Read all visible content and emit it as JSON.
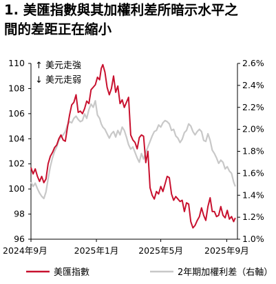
{
  "title_line1": "1. 美匯指數與其加權利差所暗示水平之",
  "title_line2": "間的差距正在縮小",
  "chart_data": {
    "type": "line",
    "left_axis": {
      "ticks": [
        96,
        98,
        100,
        102,
        104,
        106,
        108,
        110
      ],
      "range": [
        96,
        110
      ]
    },
    "right_axis": {
      "ticks": [
        "1.0%",
        "1.2%",
        "1.4%",
        "1.6%",
        "1.8%",
        "2.0%",
        "2.2%",
        "2.4%",
        "2.6%"
      ],
      "range": [
        1.0,
        2.6
      ],
      "unit": "%"
    },
    "x_ticks": [
      {
        "label": "2024年9月",
        "date": "2024-09-01"
      },
      {
        "label": "2025年1月",
        "date": "2025-01-01"
      },
      {
        "label": "2025年5月",
        "date": "2025-05-01"
      },
      {
        "label": "2025年9月",
        "date": "2025-09-01"
      }
    ],
    "annotation_up": "↑ 美元走強",
    "annotation_down": "↓ 美元走弱",
    "grid": false,
    "legend_position": "bottom",
    "series": [
      {
        "name": "美匯指數",
        "axis": "left",
        "color": "#c8102e",
        "points": [
          [
            "2024-09-01",
            101.7
          ],
          [
            "2024-09-05",
            101.2
          ],
          [
            "2024-09-09",
            101.6
          ],
          [
            "2024-09-13",
            101.0
          ],
          [
            "2024-09-17",
            100.6
          ],
          [
            "2024-09-21",
            101.0
          ],
          [
            "2024-09-25",
            100.5
          ],
          [
            "2024-09-29",
            100.8
          ],
          [
            "2024-10-03",
            102.0
          ],
          [
            "2024-10-07",
            102.6
          ],
          [
            "2024-10-11",
            102.9
          ],
          [
            "2024-10-15",
            103.3
          ],
          [
            "2024-10-19",
            103.5
          ],
          [
            "2024-10-23",
            104.0
          ],
          [
            "2024-10-27",
            104.3
          ],
          [
            "2024-10-31",
            103.9
          ],
          [
            "2024-11-04",
            103.8
          ],
          [
            "2024-11-08",
            104.9
          ],
          [
            "2024-11-12",
            105.9
          ],
          [
            "2024-11-16",
            106.7
          ],
          [
            "2024-11-20",
            106.9
          ],
          [
            "2024-11-24",
            107.5
          ],
          [
            "2024-11-28",
            106.1
          ],
          [
            "2024-12-02",
            106.2
          ],
          [
            "2024-12-06",
            106.0
          ],
          [
            "2024-12-10",
            106.4
          ],
          [
            "2024-12-14",
            107.0
          ],
          [
            "2024-12-18",
            106.8
          ],
          [
            "2024-12-22",
            107.9
          ],
          [
            "2024-12-26",
            108.1
          ],
          [
            "2024-12-30",
            108.3
          ],
          [
            "2025-01-03",
            108.9
          ],
          [
            "2025-01-07",
            108.7
          ],
          [
            "2025-01-10",
            109.6
          ],
          [
            "2025-01-13",
            109.9
          ],
          [
            "2025-01-17",
            109.3
          ],
          [
            "2025-01-21",
            108.1
          ],
          [
            "2025-01-25",
            107.5
          ],
          [
            "2025-01-29",
            108.0
          ],
          [
            "2025-02-02",
            109.0
          ],
          [
            "2025-02-06",
            107.7
          ],
          [
            "2025-02-10",
            108.2
          ],
          [
            "2025-02-14",
            106.8
          ],
          [
            "2025-02-18",
            107.1
          ],
          [
            "2025-02-22",
            106.5
          ],
          [
            "2025-02-26",
            106.9
          ],
          [
            "2025-03-02",
            107.3
          ],
          [
            "2025-03-06",
            104.3
          ],
          [
            "2025-03-10",
            103.9
          ],
          [
            "2025-03-14",
            103.7
          ],
          [
            "2025-03-18",
            103.2
          ],
          [
            "2025-03-22",
            104.1
          ],
          [
            "2025-03-26",
            104.3
          ],
          [
            "2025-03-30",
            104.2
          ],
          [
            "2025-04-03",
            102.1
          ],
          [
            "2025-04-07",
            103.0
          ],
          [
            "2025-04-11",
            100.1
          ],
          [
            "2025-04-15",
            99.5
          ],
          [
            "2025-04-19",
            99.2
          ],
          [
            "2025-04-23",
            99.8
          ],
          [
            "2025-04-27",
            99.6
          ],
          [
            "2025-05-01",
            100.2
          ],
          [
            "2025-05-05",
            99.8
          ],
          [
            "2025-05-09",
            100.4
          ],
          [
            "2025-05-13",
            101.0
          ],
          [
            "2025-05-17",
            100.9
          ],
          [
            "2025-05-21",
            99.6
          ],
          [
            "2025-05-25",
            99.1
          ],
          [
            "2025-05-29",
            99.4
          ],
          [
            "2025-06-02",
            99.2
          ],
          [
            "2025-06-06",
            99.0
          ],
          [
            "2025-06-10",
            99.1
          ],
          [
            "2025-06-14",
            98.2
          ],
          [
            "2025-06-18",
            98.9
          ],
          [
            "2025-06-22",
            98.8
          ],
          [
            "2025-06-26",
            97.4
          ],
          [
            "2025-06-30",
            96.9
          ],
          [
            "2025-07-04",
            97.1
          ],
          [
            "2025-07-08",
            97.5
          ],
          [
            "2025-07-12",
            97.8
          ],
          [
            "2025-07-16",
            98.5
          ],
          [
            "2025-07-20",
            97.9
          ],
          [
            "2025-07-24",
            97.5
          ],
          [
            "2025-07-28",
            98.6
          ],
          [
            "2025-08-01",
            99.3
          ],
          [
            "2025-08-05",
            98.2
          ],
          [
            "2025-08-09",
            98.2
          ],
          [
            "2025-08-13",
            97.8
          ],
          [
            "2025-08-17",
            97.9
          ],
          [
            "2025-08-21",
            98.6
          ],
          [
            "2025-08-25",
            97.9
          ],
          [
            "2025-08-29",
            97.7
          ],
          [
            "2025-09-02",
            98.3
          ],
          [
            "2025-09-06",
            97.6
          ],
          [
            "2025-09-10",
            97.8
          ],
          [
            "2025-09-14",
            97.4
          ],
          [
            "2025-09-17",
            97.7
          ]
        ]
      },
      {
        "name": "2年期加權利差（右軸）",
        "axis": "right",
        "color": "#c8c8c8",
        "points": [
          [
            "2024-09-01",
            1.52
          ],
          [
            "2024-09-05",
            1.48
          ],
          [
            "2024-09-09",
            1.51
          ],
          [
            "2024-09-13",
            1.46
          ],
          [
            "2024-09-17",
            1.42
          ],
          [
            "2024-09-21",
            1.39
          ],
          [
            "2024-09-25",
            1.37
          ],
          [
            "2024-09-29",
            1.43
          ],
          [
            "2024-10-03",
            1.55
          ],
          [
            "2024-10-07",
            1.66
          ],
          [
            "2024-10-11",
            1.74
          ],
          [
            "2024-10-15",
            1.8
          ],
          [
            "2024-10-19",
            1.84
          ],
          [
            "2024-10-23",
            1.9
          ],
          [
            "2024-10-27",
            1.93
          ],
          [
            "2024-10-31",
            1.95
          ],
          [
            "2024-11-04",
            1.98
          ],
          [
            "2024-11-08",
            2.04
          ],
          [
            "2024-11-12",
            2.07
          ],
          [
            "2024-11-16",
            2.06
          ],
          [
            "2024-11-20",
            2.1
          ],
          [
            "2024-11-24",
            2.12
          ],
          [
            "2024-11-28",
            2.09
          ],
          [
            "2024-12-02",
            2.07
          ],
          [
            "2024-12-06",
            2.08
          ],
          [
            "2024-12-10",
            2.14
          ],
          [
            "2024-12-14",
            2.1
          ],
          [
            "2024-12-18",
            2.18
          ],
          [
            "2024-12-22",
            2.23
          ],
          [
            "2024-12-26",
            2.2
          ],
          [
            "2024-12-30",
            2.26
          ],
          [
            "2025-01-03",
            2.13
          ],
          [
            "2025-01-07",
            2.1
          ],
          [
            "2025-01-10",
            2.05
          ],
          [
            "2025-01-13",
            2.02
          ],
          [
            "2025-01-17",
            2.0
          ],
          [
            "2025-01-21",
            1.96
          ],
          [
            "2025-01-25",
            1.92
          ],
          [
            "2025-01-29",
            1.96
          ],
          [
            "2025-02-02",
            1.98
          ],
          [
            "2025-02-06",
            1.93
          ],
          [
            "2025-02-10",
            1.99
          ],
          [
            "2025-02-14",
            1.95
          ],
          [
            "2025-02-18",
            2.02
          ],
          [
            "2025-02-22",
            1.99
          ],
          [
            "2025-02-26",
            1.93
          ],
          [
            "2025-03-02",
            1.86
          ],
          [
            "2025-03-06",
            1.82
          ],
          [
            "2025-03-10",
            1.84
          ],
          [
            "2025-03-14",
            1.79
          ],
          [
            "2025-03-18",
            1.74
          ],
          [
            "2025-03-22",
            1.7
          ],
          [
            "2025-03-26",
            1.78
          ],
          [
            "2025-03-30",
            1.73
          ],
          [
            "2025-04-03",
            1.79
          ],
          [
            "2025-04-07",
            1.84
          ],
          [
            "2025-04-11",
            1.89
          ],
          [
            "2025-04-15",
            1.94
          ],
          [
            "2025-04-19",
            1.98
          ],
          [
            "2025-04-23",
            1.99
          ],
          [
            "2025-04-27",
            2.04
          ],
          [
            "2025-05-01",
            2.02
          ],
          [
            "2025-05-05",
            2.06
          ],
          [
            "2025-05-09",
            2.08
          ],
          [
            "2025-05-13",
            2.07
          ],
          [
            "2025-05-17",
            2.05
          ],
          [
            "2025-05-21",
            1.99
          ],
          [
            "2025-05-25",
            2.0
          ],
          [
            "2025-05-29",
            1.94
          ],
          [
            "2025-06-02",
            1.92
          ],
          [
            "2025-06-06",
            1.88
          ],
          [
            "2025-06-10",
            1.91
          ],
          [
            "2025-06-14",
            1.97
          ],
          [
            "2025-06-18",
            1.99
          ],
          [
            "2025-06-22",
            2.05
          ],
          [
            "2025-06-26",
            2.03
          ],
          [
            "2025-06-30",
            1.98
          ],
          [
            "2025-07-04",
            1.95
          ],
          [
            "2025-07-08",
            1.98
          ],
          [
            "2025-07-12",
            2.0
          ],
          [
            "2025-07-16",
            1.98
          ],
          [
            "2025-07-20",
            1.9
          ],
          [
            "2025-07-24",
            1.89
          ],
          [
            "2025-07-28",
            1.96
          ],
          [
            "2025-08-01",
            1.9
          ],
          [
            "2025-08-05",
            1.81
          ],
          [
            "2025-08-09",
            1.78
          ],
          [
            "2025-08-13",
            1.74
          ],
          [
            "2025-08-17",
            1.69
          ],
          [
            "2025-08-21",
            1.72
          ],
          [
            "2025-08-25",
            1.7
          ],
          [
            "2025-08-29",
            1.64
          ],
          [
            "2025-09-02",
            1.66
          ],
          [
            "2025-09-06",
            1.62
          ],
          [
            "2025-09-10",
            1.6
          ],
          [
            "2025-09-14",
            1.52
          ],
          [
            "2025-09-17",
            1.48
          ]
        ]
      }
    ]
  }
}
